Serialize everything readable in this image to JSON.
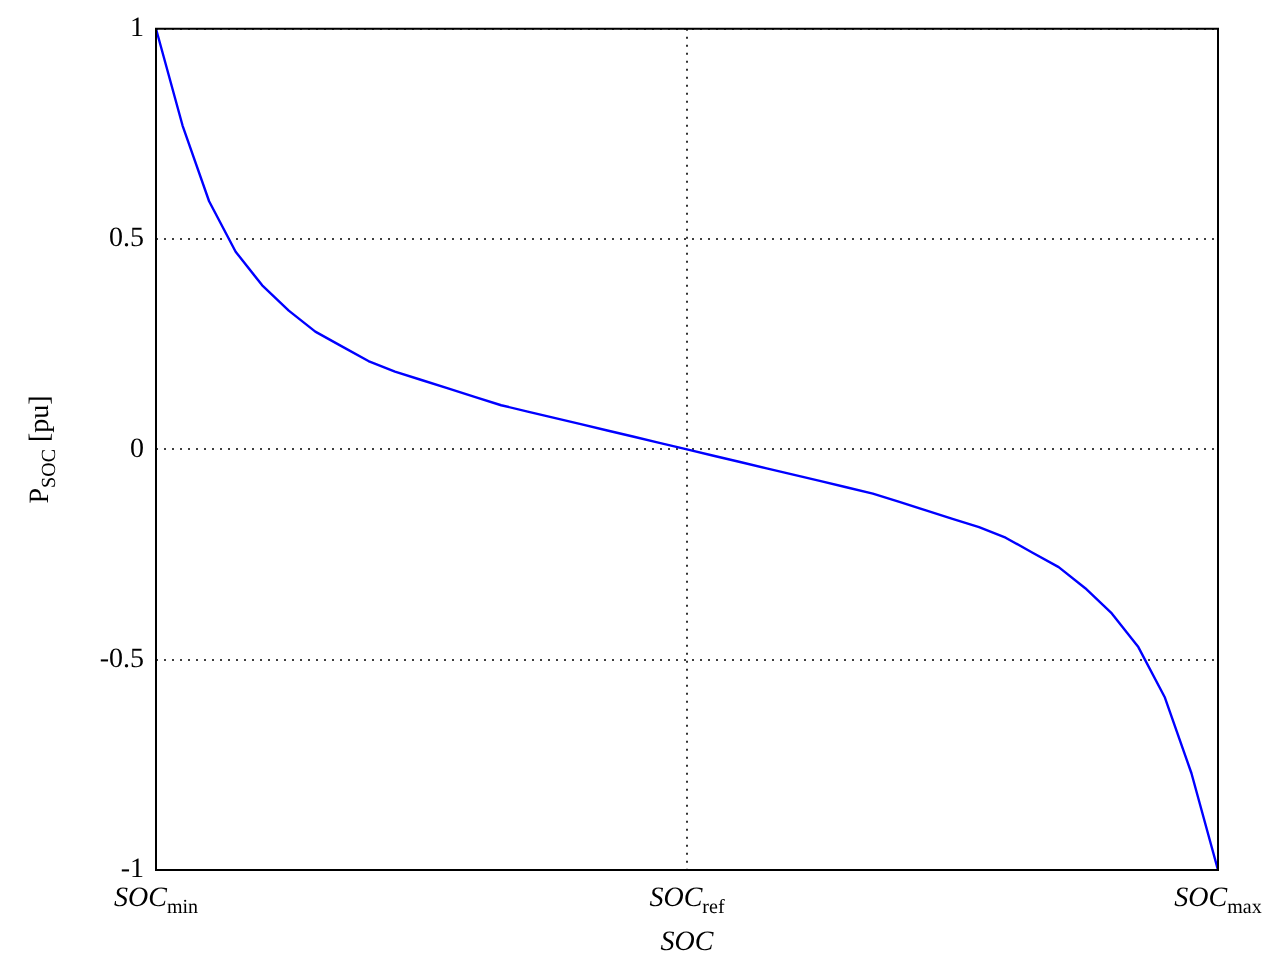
{
  "chart_data": {
    "type": "line",
    "xlabel": "SOC",
    "ylabel": "P$_{SOC}$ [pu]",
    "categories": [
      "SOC$_{min}$",
      null,
      null,
      null,
      null,
      null,
      null,
      null,
      null,
      null,
      null,
      null,
      null,
      null,
      null,
      null,
      null,
      null,
      null,
      null,
      "SOC$_{ref}$",
      null,
      null,
      null,
      null,
      null,
      null,
      null,
      null,
      null,
      null,
      null,
      null,
      null,
      null,
      null,
      null,
      null,
      null,
      null,
      "SOC$_{max}$"
    ],
    "series": [
      {
        "color": "#0000ff",
        "values": [
          1,
          0.77,
          0.59,
          0.47,
          0.39,
          0.33,
          0.28,
          0.245,
          0.21,
          0.185,
          0.165,
          0.145,
          0.125,
          0.105,
          0.09,
          0.075,
          0.06,
          0.045,
          0.03,
          0.015,
          0,
          -0.015,
          -0.03,
          -0.045,
          -0.06,
          -0.075,
          -0.09,
          -0.105,
          -0.125,
          -0.145,
          -0.165,
          -0.185,
          -0.21,
          -0.245,
          -0.28,
          -0.33,
          -0.39,
          -0.47,
          -0.59,
          -0.77,
          -1
        ]
      }
    ],
    "ylim": [
      -1,
      1
    ],
    "yticks": [
      -1,
      -0.5,
      0,
      0.5,
      1
    ],
    "grid": true,
    "legend": false,
    "marker": "none",
    "line_style": "solid"
  }
}
